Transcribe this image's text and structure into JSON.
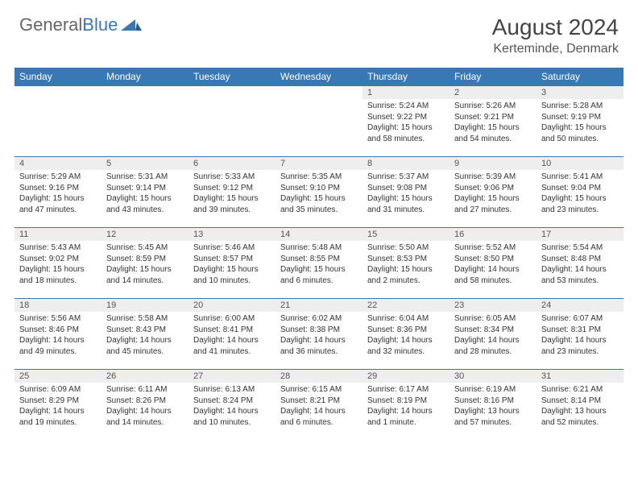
{
  "logo": {
    "text1": "General",
    "text2": "Blue"
  },
  "title": "August 2024",
  "location": "Kerteminde, Denmark",
  "colors": {
    "header_bg": "#3a78b5",
    "header_fg": "#ffffff",
    "daynum_bg": "#eeeeee",
    "border": "#3a78b5",
    "text": "#333333",
    "logo_gray": "#666666",
    "logo_blue": "#3a78b5"
  },
  "weekdays": [
    "Sunday",
    "Monday",
    "Tuesday",
    "Wednesday",
    "Thursday",
    "Friday",
    "Saturday"
  ],
  "weeks": [
    [
      {
        "n": "",
        "sr": "",
        "ss": "",
        "dl": ""
      },
      {
        "n": "",
        "sr": "",
        "ss": "",
        "dl": ""
      },
      {
        "n": "",
        "sr": "",
        "ss": "",
        "dl": ""
      },
      {
        "n": "",
        "sr": "",
        "ss": "",
        "dl": ""
      },
      {
        "n": "1",
        "sr": "Sunrise: 5:24 AM",
        "ss": "Sunset: 9:22 PM",
        "dl": "Daylight: 15 hours and 58 minutes."
      },
      {
        "n": "2",
        "sr": "Sunrise: 5:26 AM",
        "ss": "Sunset: 9:21 PM",
        "dl": "Daylight: 15 hours and 54 minutes."
      },
      {
        "n": "3",
        "sr": "Sunrise: 5:28 AM",
        "ss": "Sunset: 9:19 PM",
        "dl": "Daylight: 15 hours and 50 minutes."
      }
    ],
    [
      {
        "n": "4",
        "sr": "Sunrise: 5:29 AM",
        "ss": "Sunset: 9:16 PM",
        "dl": "Daylight: 15 hours and 47 minutes."
      },
      {
        "n": "5",
        "sr": "Sunrise: 5:31 AM",
        "ss": "Sunset: 9:14 PM",
        "dl": "Daylight: 15 hours and 43 minutes."
      },
      {
        "n": "6",
        "sr": "Sunrise: 5:33 AM",
        "ss": "Sunset: 9:12 PM",
        "dl": "Daylight: 15 hours and 39 minutes."
      },
      {
        "n": "7",
        "sr": "Sunrise: 5:35 AM",
        "ss": "Sunset: 9:10 PM",
        "dl": "Daylight: 15 hours and 35 minutes."
      },
      {
        "n": "8",
        "sr": "Sunrise: 5:37 AM",
        "ss": "Sunset: 9:08 PM",
        "dl": "Daylight: 15 hours and 31 minutes."
      },
      {
        "n": "9",
        "sr": "Sunrise: 5:39 AM",
        "ss": "Sunset: 9:06 PM",
        "dl": "Daylight: 15 hours and 27 minutes."
      },
      {
        "n": "10",
        "sr": "Sunrise: 5:41 AM",
        "ss": "Sunset: 9:04 PM",
        "dl": "Daylight: 15 hours and 23 minutes."
      }
    ],
    [
      {
        "n": "11",
        "sr": "Sunrise: 5:43 AM",
        "ss": "Sunset: 9:02 PM",
        "dl": "Daylight: 15 hours and 18 minutes."
      },
      {
        "n": "12",
        "sr": "Sunrise: 5:45 AM",
        "ss": "Sunset: 8:59 PM",
        "dl": "Daylight: 15 hours and 14 minutes."
      },
      {
        "n": "13",
        "sr": "Sunrise: 5:46 AM",
        "ss": "Sunset: 8:57 PM",
        "dl": "Daylight: 15 hours and 10 minutes."
      },
      {
        "n": "14",
        "sr": "Sunrise: 5:48 AM",
        "ss": "Sunset: 8:55 PM",
        "dl": "Daylight: 15 hours and 6 minutes."
      },
      {
        "n": "15",
        "sr": "Sunrise: 5:50 AM",
        "ss": "Sunset: 8:53 PM",
        "dl": "Daylight: 15 hours and 2 minutes."
      },
      {
        "n": "16",
        "sr": "Sunrise: 5:52 AM",
        "ss": "Sunset: 8:50 PM",
        "dl": "Daylight: 14 hours and 58 minutes."
      },
      {
        "n": "17",
        "sr": "Sunrise: 5:54 AM",
        "ss": "Sunset: 8:48 PM",
        "dl": "Daylight: 14 hours and 53 minutes."
      }
    ],
    [
      {
        "n": "18",
        "sr": "Sunrise: 5:56 AM",
        "ss": "Sunset: 8:46 PM",
        "dl": "Daylight: 14 hours and 49 minutes."
      },
      {
        "n": "19",
        "sr": "Sunrise: 5:58 AM",
        "ss": "Sunset: 8:43 PM",
        "dl": "Daylight: 14 hours and 45 minutes."
      },
      {
        "n": "20",
        "sr": "Sunrise: 6:00 AM",
        "ss": "Sunset: 8:41 PM",
        "dl": "Daylight: 14 hours and 41 minutes."
      },
      {
        "n": "21",
        "sr": "Sunrise: 6:02 AM",
        "ss": "Sunset: 8:38 PM",
        "dl": "Daylight: 14 hours and 36 minutes."
      },
      {
        "n": "22",
        "sr": "Sunrise: 6:04 AM",
        "ss": "Sunset: 8:36 PM",
        "dl": "Daylight: 14 hours and 32 minutes."
      },
      {
        "n": "23",
        "sr": "Sunrise: 6:05 AM",
        "ss": "Sunset: 8:34 PM",
        "dl": "Daylight: 14 hours and 28 minutes."
      },
      {
        "n": "24",
        "sr": "Sunrise: 6:07 AM",
        "ss": "Sunset: 8:31 PM",
        "dl": "Daylight: 14 hours and 23 minutes."
      }
    ],
    [
      {
        "n": "25",
        "sr": "Sunrise: 6:09 AM",
        "ss": "Sunset: 8:29 PM",
        "dl": "Daylight: 14 hours and 19 minutes."
      },
      {
        "n": "26",
        "sr": "Sunrise: 6:11 AM",
        "ss": "Sunset: 8:26 PM",
        "dl": "Daylight: 14 hours and 14 minutes."
      },
      {
        "n": "27",
        "sr": "Sunrise: 6:13 AM",
        "ss": "Sunset: 8:24 PM",
        "dl": "Daylight: 14 hours and 10 minutes."
      },
      {
        "n": "28",
        "sr": "Sunrise: 6:15 AM",
        "ss": "Sunset: 8:21 PM",
        "dl": "Daylight: 14 hours and 6 minutes."
      },
      {
        "n": "29",
        "sr": "Sunrise: 6:17 AM",
        "ss": "Sunset: 8:19 PM",
        "dl": "Daylight: 14 hours and 1 minute."
      },
      {
        "n": "30",
        "sr": "Sunrise: 6:19 AM",
        "ss": "Sunset: 8:16 PM",
        "dl": "Daylight: 13 hours and 57 minutes."
      },
      {
        "n": "31",
        "sr": "Sunrise: 6:21 AM",
        "ss": "Sunset: 8:14 PM",
        "dl": "Daylight: 13 hours and 52 minutes."
      }
    ]
  ]
}
